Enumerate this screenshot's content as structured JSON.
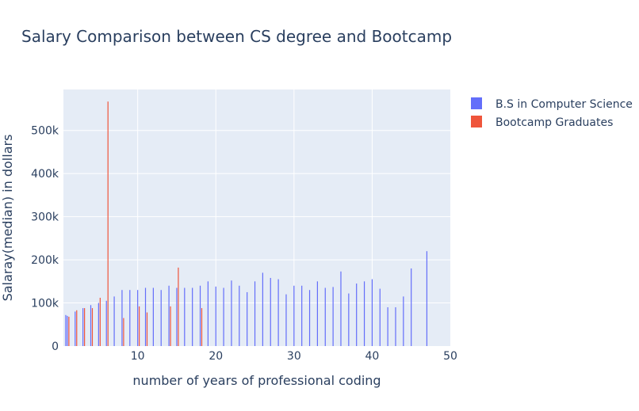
{
  "chart_data": {
    "type": "bar",
    "title": "Salary Comparison between CS degree and Bootcamp",
    "xlabel": "number of years of professional coding",
    "ylabel": "Salaray(median) in dollars",
    "xlim": [
      0.5,
      50
    ],
    "ylim": [
      0,
      595000
    ],
    "xticks": [
      10,
      20,
      30,
      40,
      50
    ],
    "yticks": [
      0,
      100000,
      200000,
      300000,
      400000,
      500000
    ],
    "ytick_labels": [
      "0",
      "100k",
      "200k",
      "300k",
      "400k",
      "500k"
    ],
    "grid": true,
    "legend_position": "top-right",
    "series": [
      {
        "name": "B.S in Computer Science",
        "color": "#636efa",
        "points": [
          [
            0.8,
            72000
          ],
          [
            1,
            70000
          ],
          [
            2,
            80000
          ],
          [
            3,
            88000
          ],
          [
            4,
            95000
          ],
          [
            5,
            100000
          ],
          [
            6,
            105000
          ],
          [
            7,
            115000
          ],
          [
            8,
            130000
          ],
          [
            9,
            130000
          ],
          [
            10,
            130000
          ],
          [
            11,
            135000
          ],
          [
            12,
            135000
          ],
          [
            13,
            130000
          ],
          [
            14,
            140000
          ],
          [
            15,
            135000
          ],
          [
            16,
            135000
          ],
          [
            17,
            135000
          ],
          [
            18,
            140000
          ],
          [
            19,
            150000
          ],
          [
            20,
            138000
          ],
          [
            21,
            135000
          ],
          [
            22,
            152000
          ],
          [
            23,
            140000
          ],
          [
            24,
            125000
          ],
          [
            25,
            150000
          ],
          [
            26,
            170000
          ],
          [
            27,
            158000
          ],
          [
            28,
            155000
          ],
          [
            29,
            120000
          ],
          [
            30,
            140000
          ],
          [
            31,
            140000
          ],
          [
            32,
            130000
          ],
          [
            33,
            150000
          ],
          [
            34,
            135000
          ],
          [
            35,
            137000
          ],
          [
            36,
            173000
          ],
          [
            37,
            122000
          ],
          [
            38,
            145000
          ],
          [
            39,
            150000
          ],
          [
            40,
            155000
          ],
          [
            41,
            133000
          ],
          [
            42,
            90000
          ],
          [
            43,
            90000
          ],
          [
            44,
            115000
          ],
          [
            45,
            180000
          ],
          [
            47,
            220000
          ]
        ]
      },
      {
        "name": "Bootcamp Graduates",
        "color": "#ef553b",
        "points": [
          [
            1.2,
            68000
          ],
          [
            2.2,
            83000
          ],
          [
            3.2,
            88000
          ],
          [
            4.2,
            88000
          ],
          [
            5.2,
            112000
          ],
          [
            6.2,
            567000
          ],
          [
            8.2,
            65000
          ],
          [
            10.2,
            92000
          ],
          [
            11.2,
            78000
          ],
          [
            14.2,
            92000
          ],
          [
            15.2,
            182000
          ],
          [
            18.2,
            88000
          ]
        ]
      }
    ]
  }
}
